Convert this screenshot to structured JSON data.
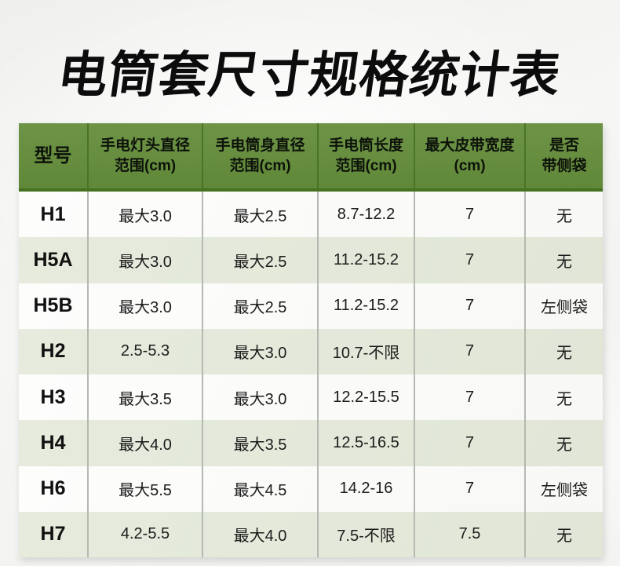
{
  "page": {
    "title": "电筒套尺寸规格统计表"
  },
  "colors": {
    "header_green": "#668d3e",
    "header_divider_green": "#4c7426",
    "header_bottom_bar": "#46711f",
    "row_odd_bg": "#fbfbf9",
    "row_even_bg": "#e4e9db",
    "cell_divider_gray": "#b4b9b1",
    "text_black": "#111111"
  },
  "chart_data": {
    "type": "table",
    "title": "电筒套尺寸规格统计表",
    "columns": [
      "型号",
      "手电灯头直径范围(cm)",
      "手电筒身直径范围(cm)",
      "手电筒长度范围(cm)",
      "最大皮带宽度(cm)",
      "是否带侧袋"
    ],
    "rows": [
      [
        "H1",
        "最大3.0",
        "最大2.5",
        "8.7-12.2",
        "7",
        "无"
      ],
      [
        "H5A",
        "最大3.0",
        "最大2.5",
        "11.2-15.2",
        "7",
        "无"
      ],
      [
        "H5B",
        "最大3.0",
        "最大2.5",
        "11.2-15.2",
        "7",
        "左侧袋"
      ],
      [
        "H2",
        "2.5-5.3",
        "最大3.0",
        "10.7-不限",
        "7",
        "无"
      ],
      [
        "H3",
        "最大3.5",
        "最大3.0",
        "12.2-15.5",
        "7",
        "无"
      ],
      [
        "H4",
        "最大4.0",
        "最大3.5",
        "12.5-16.5",
        "7",
        "无"
      ],
      [
        "H6",
        "最大5.5",
        "最大4.5",
        "14.2-16",
        "7",
        "左侧袋"
      ],
      [
        "H7",
        "4.2-5.5",
        "最大4.0",
        "7.5-不限",
        "7.5",
        "无"
      ]
    ]
  },
  "table": {
    "headers": [
      {
        "line1": "型号",
        "line2": ""
      },
      {
        "line1": "手电灯头直径",
        "line2": "范围(cm)"
      },
      {
        "line1": "手电筒身直径",
        "line2": "范围(cm)"
      },
      {
        "line1": "手电筒长度",
        "line2": "范围(cm)"
      },
      {
        "line1": "最大皮带宽度",
        "line2": "(cm)"
      },
      {
        "line1": "是否",
        "line2": "带侧袋"
      }
    ],
    "rows": [
      {
        "model": "H1",
        "cells": [
          "最大3.0",
          "最大2.5",
          "8.7-12.2",
          "7",
          "无"
        ]
      },
      {
        "model": "H5A",
        "cells": [
          "最大3.0",
          "最大2.5",
          "11.2-15.2",
          "7",
          "无"
        ]
      },
      {
        "model": "H5B",
        "cells": [
          "最大3.0",
          "最大2.5",
          "11.2-15.2",
          "7",
          "左侧袋"
        ]
      },
      {
        "model": "H2",
        "cells": [
          "2.5-5.3",
          "最大3.0",
          "10.7-不限",
          "7",
          "无"
        ]
      },
      {
        "model": "H3",
        "cells": [
          "最大3.5",
          "最大3.0",
          "12.2-15.5",
          "7",
          "无"
        ]
      },
      {
        "model": "H4",
        "cells": [
          "最大4.0",
          "最大3.5",
          "12.5-16.5",
          "7",
          "无"
        ]
      },
      {
        "model": "H6",
        "cells": [
          "最大5.5",
          "最大4.5",
          "14.2-16",
          "7",
          "左侧袋"
        ]
      },
      {
        "model": "H7",
        "cells": [
          "4.2-5.5",
          "最大4.0",
          "7.5-不限",
          "7.5",
          "无"
        ]
      }
    ]
  }
}
